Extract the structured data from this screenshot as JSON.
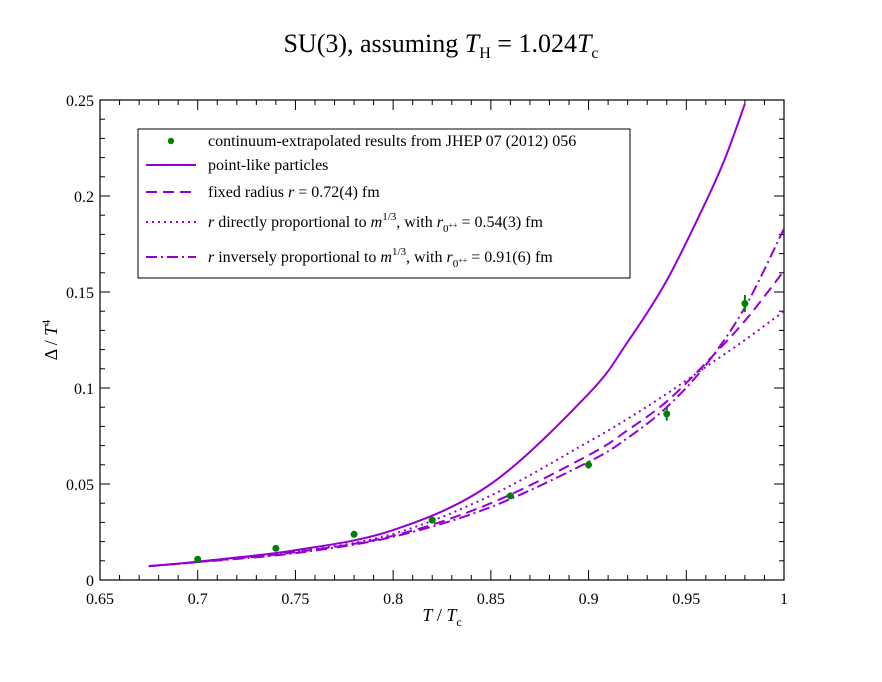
{
  "title": {
    "prefix": "SU(3), assuming ",
    "var1": "T",
    "sub1": "H",
    "middle": " = 1.024",
    "var2": "T",
    "sub2": "c"
  },
  "axes": {
    "x": {
      "var": "T",
      "slash": " / ",
      "var2": "T",
      "sub": "c"
    },
    "y": {
      "num": "Δ / ",
      "var": "T",
      "sup": "4"
    }
  },
  "colors": {
    "data": "#008000",
    "curves": "#9400d3"
  },
  "chart_data": {
    "type": "line",
    "xlim": [
      0.65,
      1.0
    ],
    "ylim": [
      0,
      0.25
    ],
    "x_ticks": [
      "0.65",
      "0.7",
      "0.75",
      "0.8",
      "0.85",
      "0.9",
      "0.95",
      "1"
    ],
    "y_ticks": [
      "0",
      "0.05",
      "0.1",
      "0.15",
      "0.2",
      "0.25"
    ],
    "x_tick_values": [
      0.65,
      0.7,
      0.75,
      0.8,
      0.85,
      0.9,
      0.95,
      1.0
    ],
    "y_tick_values": [
      0,
      0.05,
      0.1,
      0.15,
      0.2,
      0.25
    ],
    "grid": false,
    "legend_position": "top-left",
    "points": {
      "name": "continuum-extrapolated results from JHEP 07 (2012) 056",
      "x": [
        0.7,
        0.74,
        0.78,
        0.82,
        0.86,
        0.9,
        0.94,
        0.98
      ],
      "y": [
        0.0108,
        0.0165,
        0.0238,
        0.0312,
        0.0438,
        0.06,
        0.0865,
        0.144
      ],
      "yerr": [
        0.0015,
        0.0015,
        0.0015,
        0.0015,
        0.0015,
        0.002,
        0.0035,
        0.0045
      ]
    },
    "series": [
      {
        "name": "point-like particles",
        "style": "solid",
        "x": [
          0.675,
          0.7,
          0.75,
          0.8,
          0.85,
          0.9,
          0.92,
          0.94,
          0.96,
          0.97,
          0.98
        ],
        "y": [
          0.0072,
          0.0096,
          0.0155,
          0.026,
          0.05,
          0.097,
          0.124,
          0.156,
          0.197,
          0.22,
          0.248
        ]
      },
      {
        "name": "fixed radius r = 0.72(4) fm",
        "style": "dashed",
        "x": [
          0.675,
          0.7,
          0.75,
          0.8,
          0.85,
          0.9,
          0.92,
          0.94,
          0.96,
          0.98,
          1.0
        ],
        "y": [
          0.0072,
          0.0094,
          0.0145,
          0.023,
          0.04,
          0.065,
          0.078,
          0.093,
          0.113,
          0.135,
          0.161
        ]
      },
      {
        "name": "r directly proportional to m^{1/3}, with r_{0^{++}} = 0.54(3) fm",
        "style": "dotted",
        "x": [
          0.675,
          0.7,
          0.75,
          0.8,
          0.85,
          0.9,
          0.92,
          0.94,
          0.96,
          0.98,
          1.0
        ],
        "y": [
          0.0072,
          0.0094,
          0.0147,
          0.024,
          0.044,
          0.072,
          0.084,
          0.097,
          0.111,
          0.125,
          0.14
        ]
      },
      {
        "name": "r inversely proportional to m^{1/3}, with r_{0^{++}} = 0.91(6) fm",
        "style": "dashdot",
        "x": [
          0.675,
          0.7,
          0.75,
          0.8,
          0.85,
          0.9,
          0.92,
          0.94,
          0.96,
          0.98,
          1.0
        ],
        "y": [
          0.0072,
          0.0093,
          0.014,
          0.0225,
          0.038,
          0.0615,
          0.074,
          0.09,
          0.112,
          0.142,
          0.183
        ]
      }
    ],
    "legend": [
      {
        "kind": "points",
        "parts": [
          [
            "t",
            "continuum-extrapolated results from JHEP 07 (2012) 056"
          ]
        ]
      },
      {
        "kind": "solid",
        "parts": [
          [
            "t",
            "point-like particles"
          ]
        ]
      },
      {
        "kind": "dashed",
        "parts": [
          [
            "t",
            "fixed radius "
          ],
          [
            "i",
            "r"
          ],
          [
            "t",
            " = 0.72(4) fm"
          ]
        ]
      },
      {
        "kind": "dotted",
        "parts": [
          [
            "i",
            "r"
          ],
          [
            "t",
            " directly proportional to "
          ],
          [
            "i",
            "m"
          ],
          [
            "sup",
            "1/3"
          ],
          [
            "t",
            ", with "
          ],
          [
            "i",
            "r"
          ],
          [
            "sub",
            "0"
          ],
          [
            "subsup",
            "++"
          ],
          [
            "t",
            " = 0.54(3) fm"
          ]
        ]
      },
      {
        "kind": "dashdot",
        "parts": [
          [
            "i",
            "r"
          ],
          [
            "t",
            " inversely proportional to "
          ],
          [
            "i",
            "m"
          ],
          [
            "sup",
            "1/3"
          ],
          [
            "t",
            ", with "
          ],
          [
            "i",
            "r"
          ],
          [
            "sub",
            "0"
          ],
          [
            "subsup",
            "++"
          ],
          [
            "t",
            " = 0.91(6) fm"
          ]
        ]
      }
    ]
  }
}
